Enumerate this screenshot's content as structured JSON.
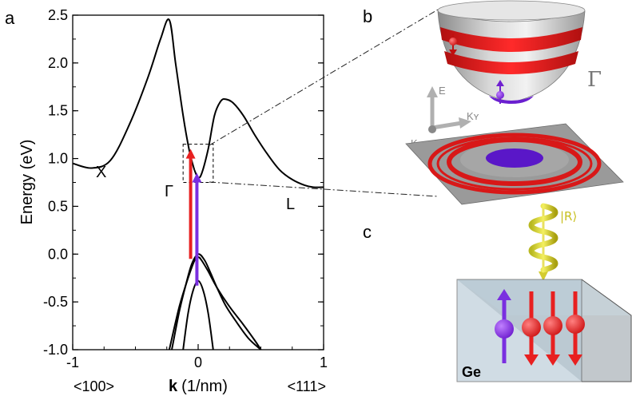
{
  "panels": {
    "a": "a",
    "b": "b",
    "c": "c"
  },
  "chart_data": {
    "type": "line",
    "xlabel_bold": "k",
    "xlabel_rest": "(1/nm)",
    "ylabel": "Energy (eV)",
    "xlim": [
      -1,
      1
    ],
    "ylim": [
      -1.0,
      2.5
    ],
    "x_ticks": [
      "-1",
      "0",
      "1"
    ],
    "y_ticks": [
      "2.5",
      "2.0",
      "1.5",
      "1.0",
      "0.5",
      "0.0",
      "-0.5",
      "-1.0"
    ],
    "direction_labels": {
      "left": "<100>",
      "right": "<111>"
    },
    "point_labels": {
      "X": "X",
      "Gamma": "Γ",
      "L": "L"
    },
    "series": [
      {
        "x": [
          -1.0,
          -0.85,
          -0.7,
          -0.55,
          -0.4,
          -0.3,
          -0.23,
          -0.18,
          -0.12,
          -0.07,
          -0.03
        ],
        "y": [
          0.95,
          0.9,
          0.98,
          1.35,
          1.85,
          2.25,
          2.45,
          2.0,
          1.45,
          1.08,
          0.88
        ]
      },
      {
        "x": [
          -0.03,
          0.0,
          0.03,
          0.08,
          0.13,
          0.18,
          0.22,
          0.28,
          0.36,
          0.45,
          0.55,
          0.65,
          0.75,
          0.85,
          0.92,
          1.0
        ],
        "y": [
          0.88,
          0.8,
          0.85,
          1.1,
          1.45,
          1.6,
          1.62,
          1.58,
          1.45,
          1.25,
          1.05,
          0.88,
          0.78,
          0.72,
          0.7,
          0.7
        ]
      },
      {
        "x": [
          -0.21,
          -0.15,
          -0.1,
          -0.05,
          0.0,
          0.05,
          0.1,
          0.15,
          0.22,
          0.3,
          0.4,
          0.5
        ],
        "y": [
          -1.0,
          -0.6,
          -0.33,
          -0.1,
          0.0,
          -0.06,
          -0.2,
          -0.35,
          -0.54,
          -0.7,
          -0.88,
          -1.0
        ]
      },
      {
        "x": [
          -0.23,
          -0.15,
          -0.08,
          -0.03,
          0.0,
          0.03,
          0.08,
          0.15,
          0.25,
          0.35,
          0.45,
          0.5
        ],
        "y": [
          -1.0,
          -0.55,
          -0.25,
          -0.07,
          -0.03,
          -0.07,
          -0.18,
          -0.35,
          -0.55,
          -0.72,
          -0.9,
          -1.0
        ]
      },
      {
        "x": [
          -0.12,
          -0.08,
          -0.04,
          0.0,
          0.04,
          0.08,
          0.12
        ],
        "y": [
          -1.0,
          -0.62,
          -0.38,
          -0.28,
          -0.38,
          -0.62,
          -1.0
        ]
      }
    ],
    "transitions": [
      {
        "color": "#e82020",
        "x": -0.06,
        "y_from": -0.05,
        "y_to": 1.1
      },
      {
        "color": "#7a2fe0",
        "x": -0.01,
        "y_from": -0.33,
        "y_to": 0.85
      }
    ],
    "zoom_box": {
      "x": [
        -0.12,
        0.12
      ],
      "y": [
        0.75,
        1.15
      ]
    }
  },
  "panel_b": {
    "axis_E": "E",
    "axis_ky": "Kʏ",
    "axis_kx": "Kₓ",
    "gamma": "Γ"
  },
  "panel_c": {
    "photon": "|R⟩",
    "material": "Ge"
  }
}
